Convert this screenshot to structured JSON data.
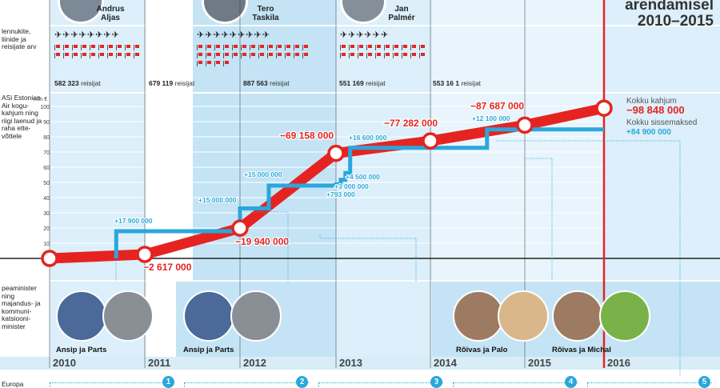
{
  "top": {
    "title": "arendamisel 2010–2015",
    "row1_label": "lennukite, liinide ja reisijate arv",
    "row2_label": "ASi Estonian Air kogu-kahjum ning riigi laenud ja raha ette-võttele",
    "row3_label": "peaminister ning majandus- ja kommuni-katsiooni-minister",
    "row4_label": "Europa"
  },
  "ceos": [
    {
      "name_first": "Andrus",
      "name_last": "Aljas"
    },
    {
      "name_first": "Tero",
      "name_last": "Taskila"
    },
    {
      "name_first": "Jan",
      "name_last": "Palmér"
    }
  ],
  "passengers": [
    {
      "value": "582 323",
      "unit": "reisijat"
    },
    {
      "value": "679 119",
      "unit": "reisijat"
    },
    {
      "value": "887 563",
      "unit": "reisijat"
    },
    {
      "value": "551 169",
      "unit": "reisijat"
    },
    {
      "value": "553 16 1",
      "unit": "reisijat"
    }
  ],
  "fleet": [
    {
      "planes": 8,
      "flags": 20
    },
    {
      "planes": 9,
      "flags": 30
    },
    {
      "planes": 6,
      "flags": 20
    }
  ],
  "chart_data": {
    "type": "line",
    "ylabel": "mln €",
    "ylim": [
      0,
      100
    ],
    "yticks": [
      10,
      20,
      30,
      40,
      50,
      60,
      70,
      80,
      90,
      100
    ],
    "x_categories": [
      "2010",
      "2011",
      "2012",
      "2013",
      "2014",
      "2015",
      "2016"
    ],
    "series": [
      {
        "kind": "loss",
        "color": "#e52421",
        "points": [
          {
            "year": 2010.0,
            "value": 0,
            "label": ""
          },
          {
            "year": 2011.0,
            "value": 2.617,
            "label": "−2 617 000"
          },
          {
            "year": 2012.0,
            "value": 19.94,
            "label": "−19 940 000"
          },
          {
            "year": 2013.0,
            "value": 69.158,
            "label": "−69 158 000"
          },
          {
            "year": 2014.0,
            "value": 77.282,
            "label": "−77 282 000"
          },
          {
            "year": 2015.0,
            "value": 87.687,
            "label": "−87 687 000"
          },
          {
            "year": 2016.0,
            "value": 98.848,
            "label": ""
          }
        ]
      },
      {
        "kind": "capital",
        "color": "#2aa7dc",
        "steps": [
          {
            "year": 2010.7,
            "value": 17.9,
            "label": "+17 900 000"
          },
          {
            "year": 2012.0,
            "value": 32.9,
            "label": "+15 000 000"
          },
          {
            "year": 2012.3,
            "value": 47.9,
            "label": "+15 000 000"
          },
          {
            "year": 2013.0,
            "value": 48.693,
            "label": "+793 000"
          },
          {
            "year": 2013.05,
            "value": 51.693,
            "label": "+3 000 000"
          },
          {
            "year": 2013.1,
            "value": 56.193,
            "label": "+4 500 000"
          },
          {
            "year": 2013.15,
            "value": 72.793,
            "label": "+16 600 000"
          },
          {
            "year": 2014.6,
            "value": 84.893,
            "label": "+12 100 000"
          }
        ]
      }
    ],
    "summary": {
      "loss_label": "Kokku kahjum",
      "loss_value": "−98 848 000",
      "capital_label": "Kokku sissemaksed",
      "capital_value": "+84 900 000"
    }
  },
  "ministers": [
    {
      "label": "Ansip ja Parts"
    },
    {
      "label": "Ansip ja Parts"
    },
    {
      "label": "Rõivas ja Palo"
    },
    {
      "label": "Rõivas ja Michal"
    }
  ],
  "events": [
    "1",
    "2",
    "3",
    "4",
    "5"
  ],
  "colors": {
    "band": "#d6ecf8",
    "band_dark": "#bfe2f4",
    "red": "#e52421",
    "blue": "#2aa7dc"
  }
}
